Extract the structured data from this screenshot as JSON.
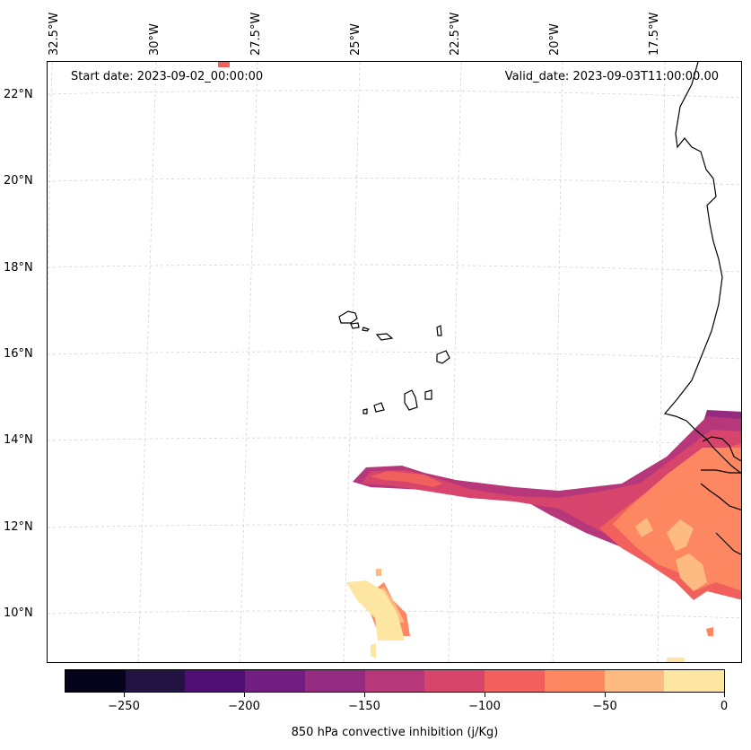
{
  "map": {
    "start_date": "Start date: 2023-09-02_00:00:00",
    "valid_date": "Valid_date: 2023-09-03T11:00:00.00",
    "lon_labels": [
      "32.5°W",
      "30°W",
      "27.5°W",
      "25°W",
      "22.5°W",
      "20°W",
      "17.5°W"
    ],
    "lat_labels": [
      "22°N",
      "20°N",
      "18°N",
      "16°N",
      "14°N",
      "12°N",
      "10°N"
    ],
    "gridlines": true,
    "features": [
      "coastline-west-africa",
      "cape-verde-islands"
    ]
  },
  "colorbar": {
    "title": "850 hPa convective inhibition (j/Kg)",
    "tick_labels": [
      "−250",
      "−200",
      "−150",
      "−100",
      "−50",
      "0"
    ],
    "levels": [
      -275,
      -250,
      -225,
      -200,
      -175,
      -150,
      -125,
      -100,
      -75,
      -50,
      -25,
      0
    ],
    "colors": [
      "#05041a",
      "#211443",
      "#4f0f72",
      "#721e81",
      "#942b80",
      "#b6377a",
      "#d8456c",
      "#f1605d",
      "#fc8761",
      "#febb81",
      "#fde6a2"
    ]
  }
}
